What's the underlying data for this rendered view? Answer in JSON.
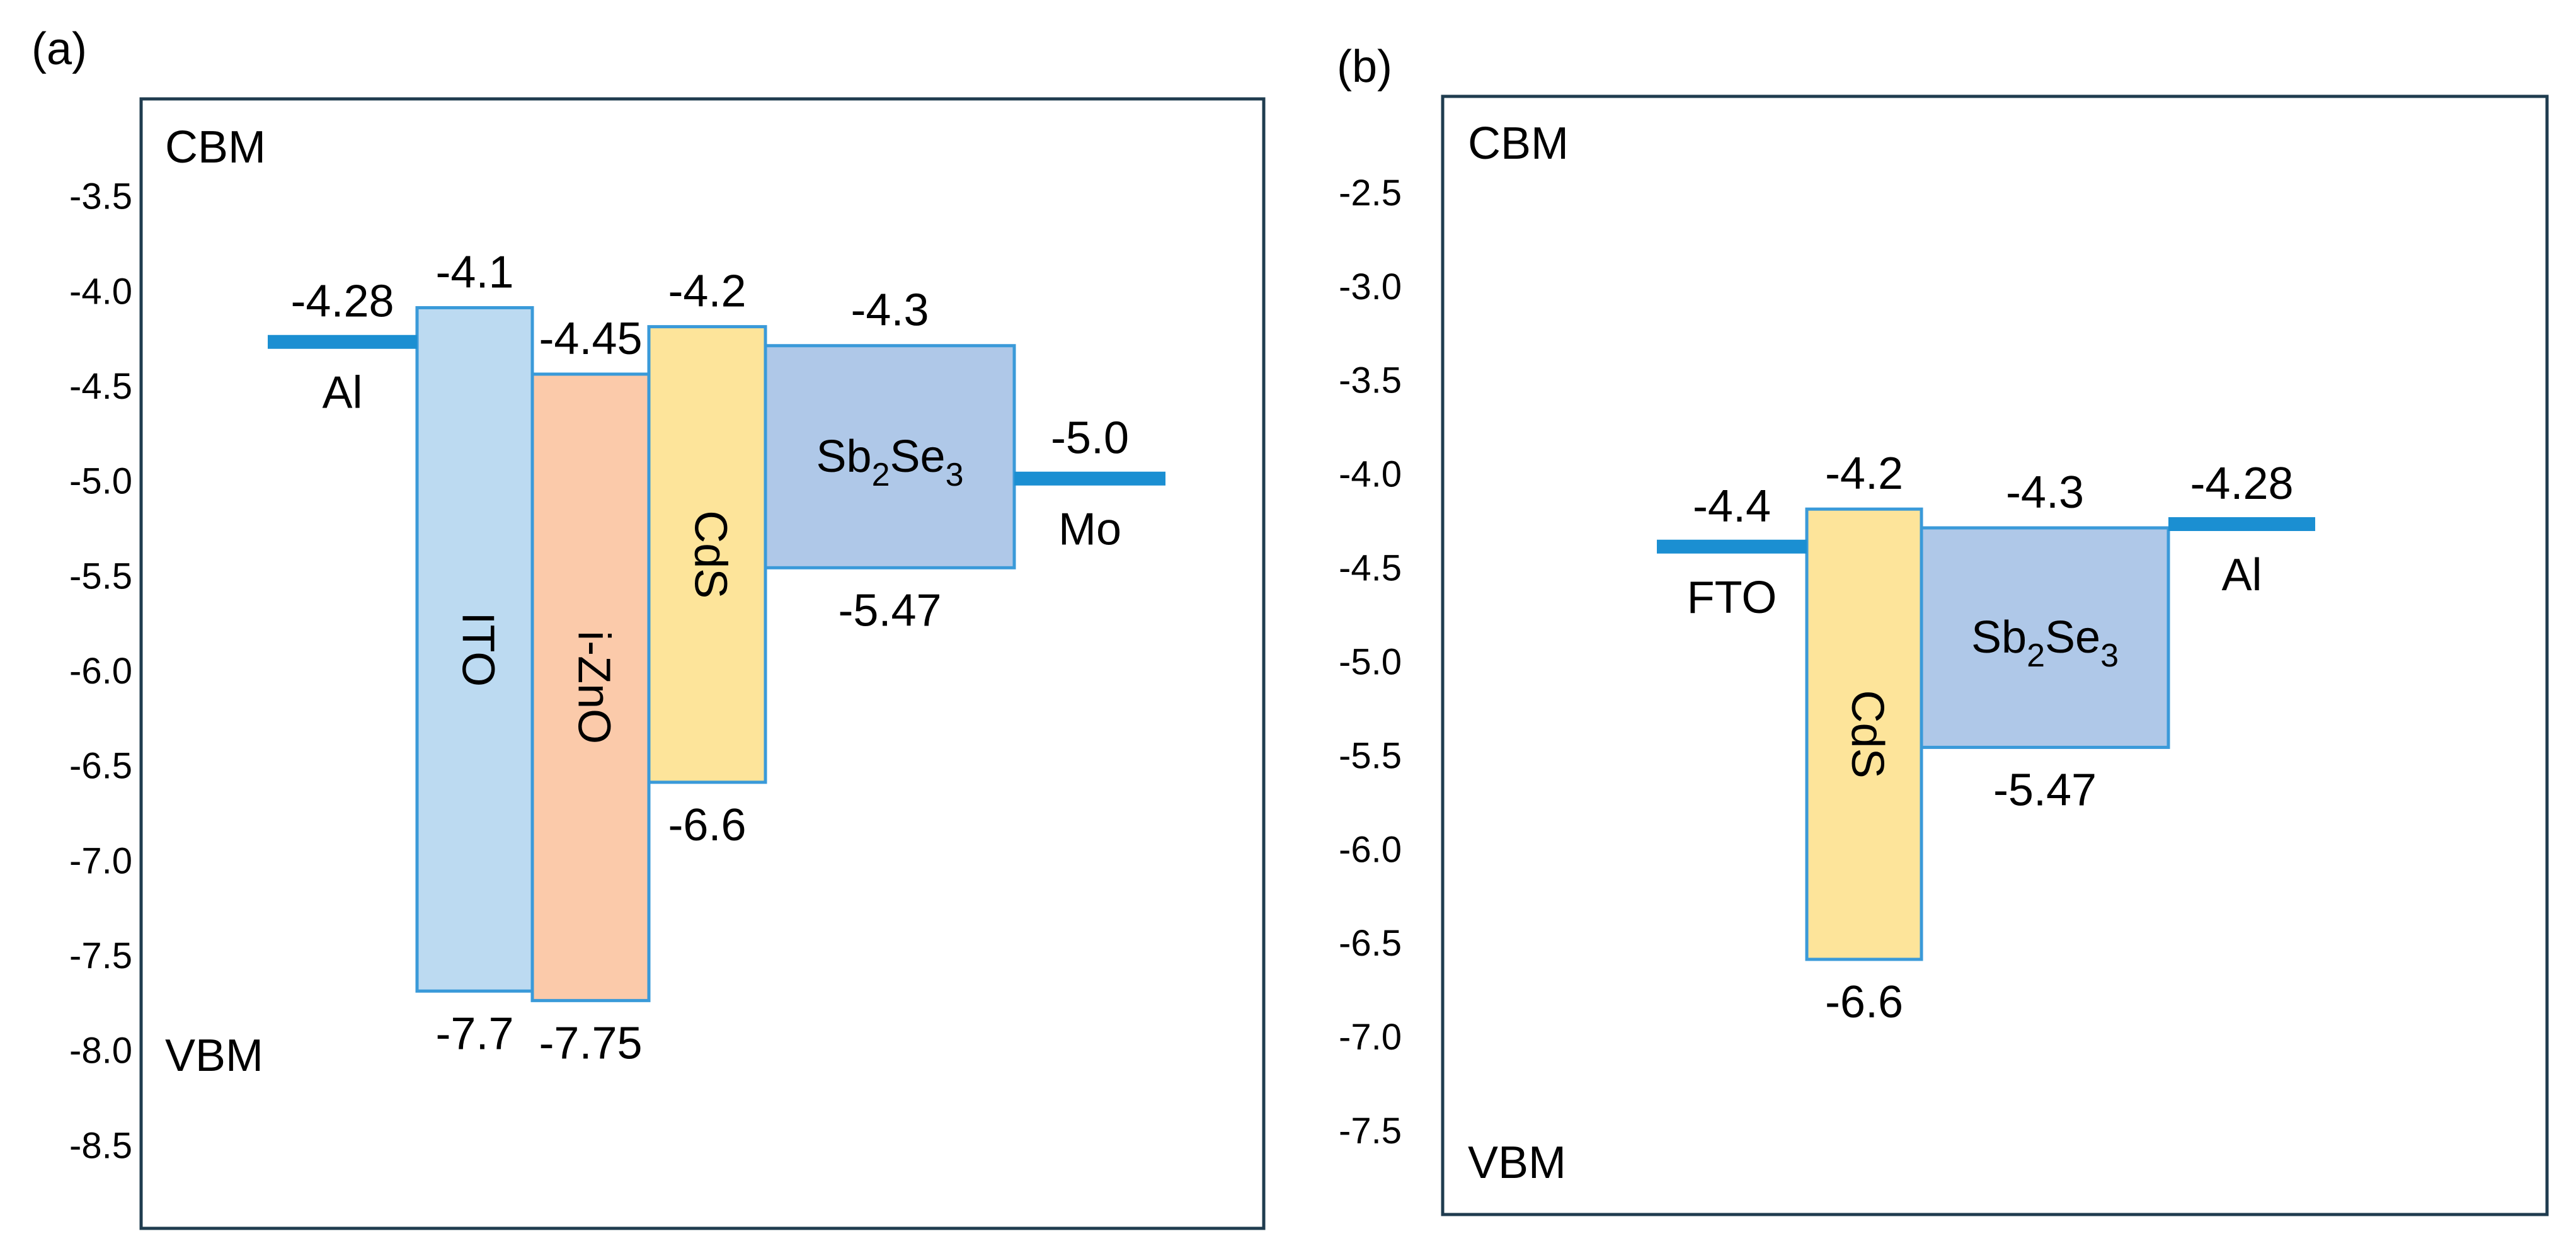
{
  "panels": [
    {
      "id": "a",
      "tag": "(a)",
      "cbm_label": "CBM",
      "vbm_label": "VBM",
      "axis_ticks": [
        "-3.5",
        "-4.0",
        "-4.5",
        "-5.0",
        "-5.5",
        "-6.0",
        "-6.5",
        "-7.0",
        "-7.5",
        "-8.0",
        "-8.5"
      ],
      "axis_range": [
        -3.0,
        -8.95
      ],
      "electrodes": [
        {
          "name": "Al",
          "level": -4.28,
          "value_label": "-4.28",
          "side": "left"
        },
        {
          "name": "Mo",
          "level": -5.0,
          "value_label": "-5.0",
          "side": "right"
        }
      ],
      "layers": [
        {
          "name": "ITO",
          "cbm": -4.1,
          "vbm": -7.7,
          "cbm_label": "-4.1",
          "vbm_label": "-7.7",
          "color": "#bcdaf1",
          "rotated": true
        },
        {
          "name": "i-ZnO",
          "cbm": -4.45,
          "vbm": -7.75,
          "cbm_label": "-4.45",
          "vbm_label": "-7.75",
          "color": "#fbcaaa",
          "rotated": true
        },
        {
          "name": "CdS",
          "cbm": -4.2,
          "vbm": -6.6,
          "cbm_label": "-4.2",
          "vbm_label": "-6.6",
          "color": "#fde49a",
          "rotated": true
        },
        {
          "name_main": "Sb",
          "sub1": "2",
          "name_mid": "Se",
          "sub2": "3",
          "cbm": -4.3,
          "vbm": -5.47,
          "cbm_label": "-4.3",
          "vbm_label": "-5.47",
          "color": "#afc8e8",
          "rotated": false
        }
      ]
    },
    {
      "id": "b",
      "tag": "(b)",
      "cbm_label": "CBM",
      "vbm_label": "VBM",
      "axis_ticks": [
        "-2.5",
        "-3.0",
        "-3.5",
        "-4.0",
        "-4.5",
        "-5.0",
        "-5.5",
        "-6.0",
        "-6.5",
        "-7.0",
        "-7.5"
      ],
      "axis_range": [
        -2.0,
        -7.96
      ],
      "electrodes": [
        {
          "name": "FTO",
          "level": -4.4,
          "value_label": "-4.4",
          "side": "left"
        },
        {
          "name": "Al",
          "level": -4.28,
          "value_label": "-4.28",
          "side": "right"
        }
      ],
      "layers": [
        {
          "name": "CdS",
          "cbm": -4.2,
          "vbm": -6.6,
          "cbm_label": "-4.2",
          "vbm_label": "-6.6",
          "color": "#fde49a",
          "rotated": true
        },
        {
          "name_main": "Sb",
          "sub1": "2",
          "name_mid": "Se",
          "sub2": "3",
          "cbm": -4.3,
          "vbm": -5.47,
          "cbm_label": "-4.3",
          "vbm_label": "-5.47",
          "color": "#afc8e8",
          "rotated": false
        }
      ]
    }
  ],
  "colors": {
    "frame": "#1f3c4f",
    "box_stroke": "#3a9ad9",
    "electrode": "#1b8fd2",
    "text": "#000000"
  }
}
